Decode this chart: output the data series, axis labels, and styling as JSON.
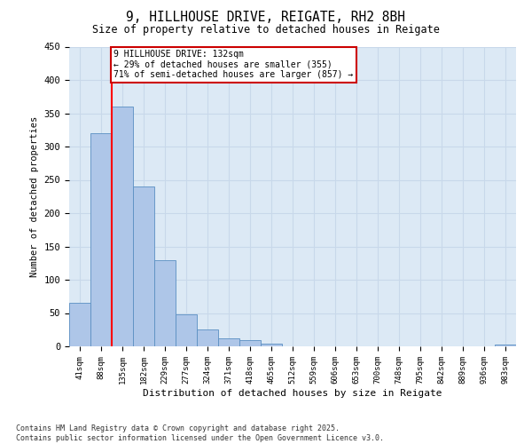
{
  "title": "9, HILLHOUSE DRIVE, REIGATE, RH2 8BH",
  "subtitle": "Size of property relative to detached houses in Reigate",
  "xlabel": "Distribution of detached houses by size in Reigate",
  "ylabel": "Number of detached properties",
  "bins": [
    "41sqm",
    "88sqm",
    "135sqm",
    "182sqm",
    "229sqm",
    "277sqm",
    "324sqm",
    "371sqm",
    "418sqm",
    "465sqm",
    "512sqm",
    "559sqm",
    "606sqm",
    "653sqm",
    "700sqm",
    "748sqm",
    "795sqm",
    "842sqm",
    "889sqm",
    "936sqm",
    "983sqm"
  ],
  "values": [
    65,
    320,
    360,
    240,
    130,
    48,
    25,
    12,
    10,
    4,
    0,
    0,
    0,
    0,
    0,
    0,
    0,
    0,
    0,
    0,
    3
  ],
  "bar_color": "#aec6e8",
  "bar_edge_color": "#5a8fc2",
  "red_line_bin_index": 2,
  "annotation_text": "9 HILLHOUSE DRIVE: 132sqm\n← 29% of detached houses are smaller (355)\n71% of semi-detached houses are larger (857) →",
  "annotation_box_color": "#ffffff",
  "annotation_box_edge_color": "#cc0000",
  "grid_color": "#c8d8ea",
  "bg_color": "#dce9f5",
  "footer": "Contains HM Land Registry data © Crown copyright and database right 2025.\nContains public sector information licensed under the Open Government Licence v3.0.",
  "ylim": [
    0,
    450
  ],
  "yticks": [
    0,
    50,
    100,
    150,
    200,
    250,
    300,
    350,
    400,
    450
  ]
}
